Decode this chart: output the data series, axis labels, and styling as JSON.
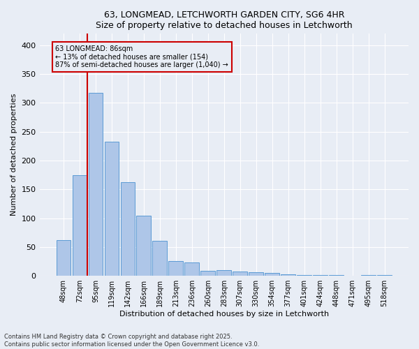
{
  "title_line1": "63, LONGMEAD, LETCHWORTH GARDEN CITY, SG6 4HR",
  "title_line2": "Size of property relative to detached houses in Letchworth",
  "xlabel": "Distribution of detached houses by size in Letchworth",
  "ylabel": "Number of detached properties",
  "categories": [
    "48sqm",
    "72sqm",
    "95sqm",
    "119sqm",
    "142sqm",
    "166sqm",
    "189sqm",
    "213sqm",
    "236sqm",
    "260sqm",
    "283sqm",
    "307sqm",
    "330sqm",
    "354sqm",
    "377sqm",
    "401sqm",
    "424sqm",
    "448sqm",
    "471sqm",
    "495sqm",
    "518sqm"
  ],
  "values": [
    62,
    175,
    317,
    233,
    163,
    104,
    61,
    26,
    23,
    9,
    10,
    8,
    6,
    5,
    3,
    2,
    1,
    1,
    0,
    1,
    2
  ],
  "bar_color": "#aec6e8",
  "bar_edge_color": "#5b9bd5",
  "vline_x": 1.5,
  "vline_color": "#cc0000",
  "annotation_title": "63 LONGMEAD: 86sqm",
  "annotation_line1": "← 13% of detached houses are smaller (154)",
  "annotation_line2": "87% of semi-detached houses are larger (1,040) →",
  "annotation_box_color": "#cc0000",
  "ylim": [
    0,
    420
  ],
  "yticks": [
    0,
    50,
    100,
    150,
    200,
    250,
    300,
    350,
    400
  ],
  "background_color": "#e8edf5",
  "grid_color": "#ffffff",
  "footer_line1": "Contains HM Land Registry data © Crown copyright and database right 2025.",
  "footer_line2": "Contains public sector information licensed under the Open Government Licence v3.0."
}
